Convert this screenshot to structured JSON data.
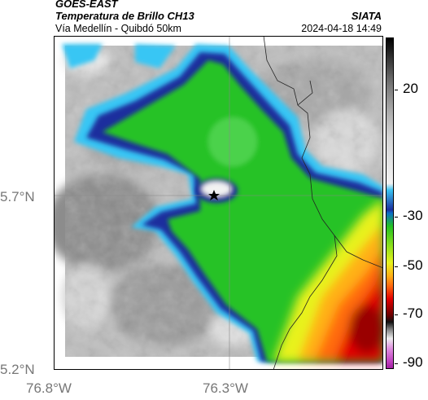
{
  "header": {
    "satellite": "GOES-EAST",
    "product": "Temperatura de Brillo CH13",
    "organization": "SIATA",
    "subtitle": "Vía Medellín - Quibdó 50km",
    "timestamp": "2024-04-18 14:49"
  },
  "axes": {
    "lat_ticks": [
      "5.7°N",
      "5.2°N"
    ],
    "lon_ticks": [
      "76.8°W",
      "76.3°W"
    ]
  },
  "colorbar": {
    "labels": [
      "20",
      "-30",
      "-50",
      "-70",
      "-90"
    ],
    "colors": {
      "warm_gray": "#d8d8d8",
      "mid_gray": "#8a8a8a",
      "cyan": "#39c4f2",
      "blue": "#1b2f9e",
      "green": "#22c222",
      "yellow": "#e6f21c",
      "orange": "#ff8c10",
      "red": "#e40000",
      "dark_red": "#4a0000",
      "magenta": "#c040c0"
    }
  },
  "map": {
    "marker": "star-marker"
  }
}
